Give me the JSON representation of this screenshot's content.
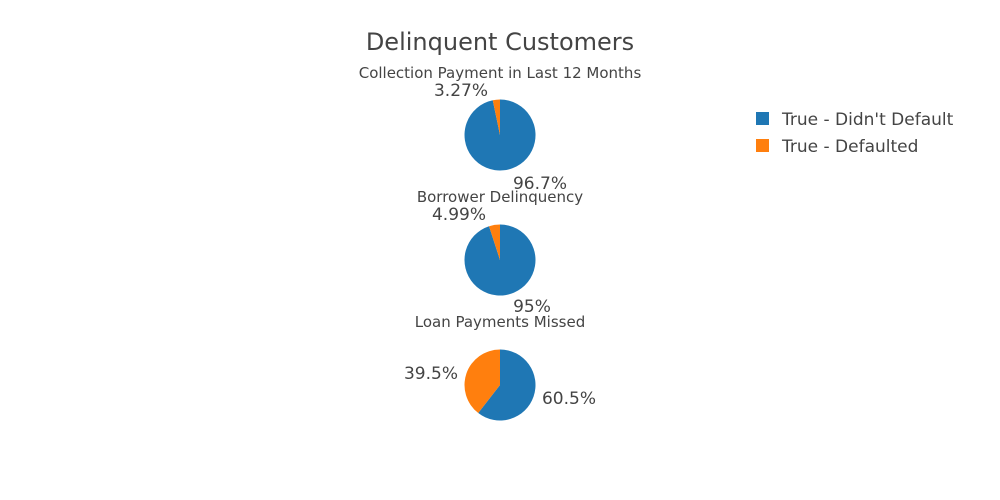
{
  "chart_data": {
    "type": "pie",
    "title": "Delinquent Customers",
    "legend_position": "top-right",
    "series_names": [
      "True - Didn't Default",
      "True - Defaulted"
    ],
    "colors": [
      "#1f77b4",
      "#ff7f0e"
    ],
    "pies": [
      {
        "title": "Collection Payment in Last 12 Months",
        "values": [
          96.7,
          3.27
        ],
        "labels": [
          "96.7%",
          "3.27%"
        ]
      },
      {
        "title": "Borrower Delinquency",
        "values": [
          95,
          4.99
        ],
        "labels": [
          "95%",
          "4.99%"
        ]
      },
      {
        "title": "Loan Payments Missed",
        "values": [
          60.5,
          39.5
        ],
        "labels": [
          "60.5%",
          "39.5%"
        ]
      }
    ]
  }
}
